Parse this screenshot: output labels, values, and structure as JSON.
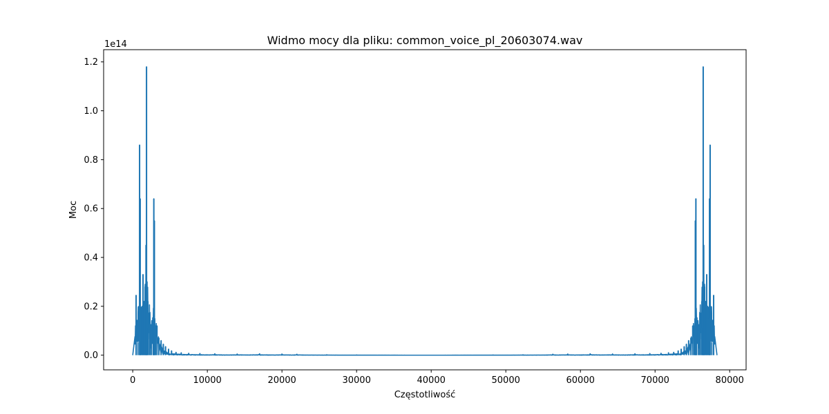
{
  "chart_data": {
    "type": "line",
    "title": "Widmo mocy dla pliku: common_voice_pl_20603074.wav",
    "xlabel": "Częstotliwość",
    "ylabel": "Moc",
    "y_offset_label": "1e14",
    "y_scale": 100000000000000.0,
    "xlim": [
      -3900,
      82200
    ],
    "ylim": [
      -0.06,
      1.25
    ],
    "x_ticks": [
      0,
      10000,
      20000,
      30000,
      40000,
      50000,
      60000,
      70000,
      80000
    ],
    "x_tick_labels": [
      "0",
      "10000",
      "20000",
      "30000",
      "40000",
      "50000",
      "60000",
      "70000",
      "80000"
    ],
    "y_ticks": [
      0.0,
      0.2,
      0.4,
      0.6,
      0.8,
      1.0,
      1.2
    ],
    "y_tick_labels": [
      "0.0",
      "0.2",
      "0.4",
      "0.6",
      "0.8",
      "1.0",
      "1.2"
    ],
    "grid": false,
    "legend": null,
    "color": "#1f77b4",
    "symmetric_about": 39150,
    "x_max": 78300,
    "series": [
      {
        "peaks": [
          {
            "x": 450,
            "y": 0.245
          },
          {
            "x": 700,
            "y": 0.05
          },
          {
            "x": 920,
            "y": 0.86
          },
          {
            "x": 1000,
            "y": 0.64
          },
          {
            "x": 1100,
            "y": 0.15
          },
          {
            "x": 1250,
            "y": 0.2
          },
          {
            "x": 1380,
            "y": 0.33
          },
          {
            "x": 1520,
            "y": 0.22
          },
          {
            "x": 1650,
            "y": 0.28
          },
          {
            "x": 1780,
            "y": 0.45
          },
          {
            "x": 1850,
            "y": 1.18
          },
          {
            "x": 1950,
            "y": 0.21
          },
          {
            "x": 2100,
            "y": 0.11
          },
          {
            "x": 2300,
            "y": 0.11
          },
          {
            "x": 2500,
            "y": 0.1
          },
          {
            "x": 2750,
            "y": 0.15
          },
          {
            "x": 2830,
            "y": 0.64
          },
          {
            "x": 2900,
            "y": 0.55
          },
          {
            "x": 3050,
            "y": 0.08
          },
          {
            "x": 3250,
            "y": 0.12
          },
          {
            "x": 3500,
            "y": 0.07
          },
          {
            "x": 3800,
            "y": 0.06
          },
          {
            "x": 4100,
            "y": 0.045
          },
          {
            "x": 4400,
            "y": 0.035
          },
          {
            "x": 4800,
            "y": 0.025
          },
          {
            "x": 5200,
            "y": 0.018
          },
          {
            "x": 5800,
            "y": 0.012
          },
          {
            "x": 6500,
            "y": 0.01
          },
          {
            "x": 7500,
            "y": 0.008
          },
          {
            "x": 9000,
            "y": 0.007
          },
          {
            "x": 11000,
            "y": 0.006
          },
          {
            "x": 14000,
            "y": 0.005
          },
          {
            "x": 17000,
            "y": 0.006
          },
          {
            "x": 20000,
            "y": 0.005
          },
          {
            "x": 22000,
            "y": 0.004
          },
          {
            "x": 26000,
            "y": 0.002
          },
          {
            "x": 30000,
            "y": 0.001
          }
        ]
      }
    ]
  }
}
